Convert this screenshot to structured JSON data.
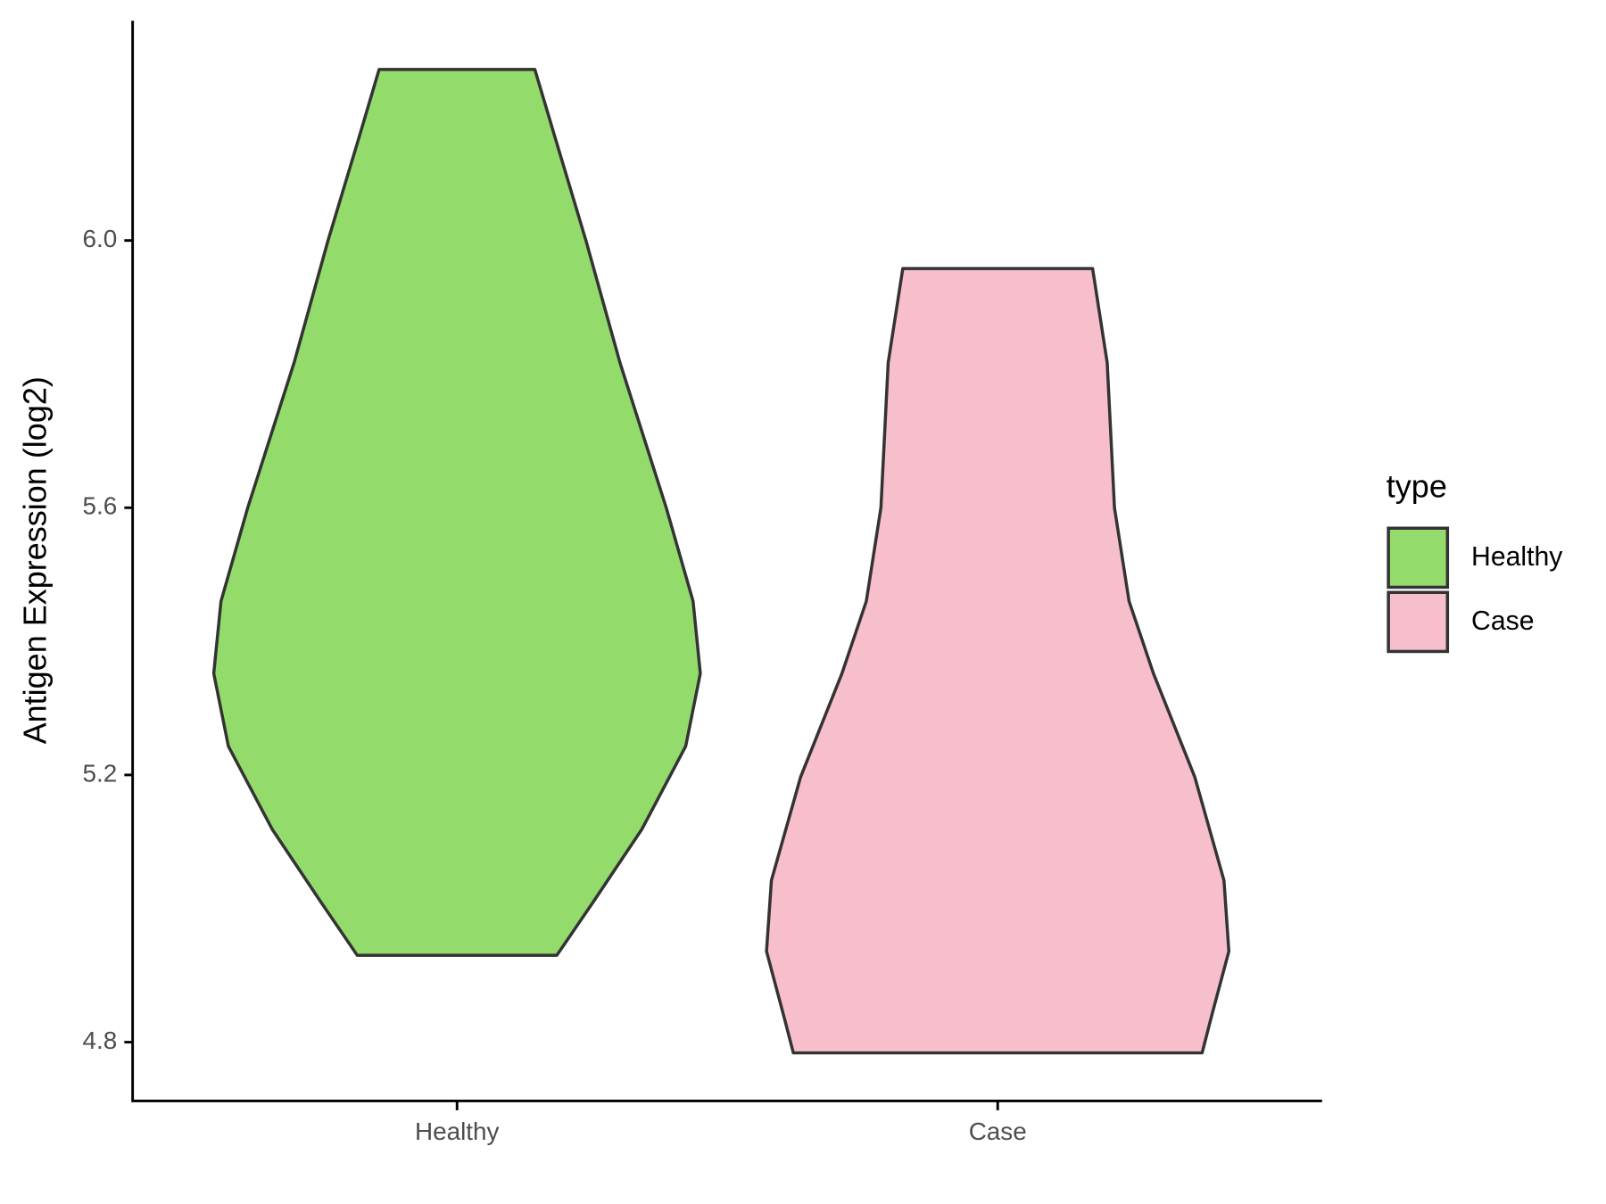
{
  "chart_data": {
    "type": "violin",
    "y_label": "Antigen Expression (log2)",
    "categories": [
      "Healthy",
      "Case"
    ],
    "legend_title": "type",
    "series": [
      {
        "name": "Healthy",
        "color": "#93dc6b",
        "y": [
          6.256,
          6.158,
          6.0,
          5.817,
          5.6,
          5.46,
          5.352,
          5.243,
          5.119,
          5.01,
          4.93
        ],
        "density": [
          0.32,
          0.4,
          0.53,
          0.67,
          0.86,
          0.97,
          1.0,
          0.94,
          0.76,
          0.56,
          0.41
        ]
      },
      {
        "name": "Case",
        "color": "#f7bfcb",
        "y": [
          5.958,
          5.817,
          5.6,
          5.46,
          5.352,
          5.197,
          5.042,
          4.936,
          4.84,
          4.784
        ],
        "density": [
          0.39,
          0.45,
          0.48,
          0.54,
          0.64,
          0.81,
          0.93,
          0.95,
          0.88,
          0.84
        ]
      }
    ],
    "ylim": [
      4.712,
      6.329
    ],
    "yticks": [
      4.8,
      5.2,
      5.6,
      {
        "value": 6.0,
        "label": "6.0"
      }
    ]
  }
}
